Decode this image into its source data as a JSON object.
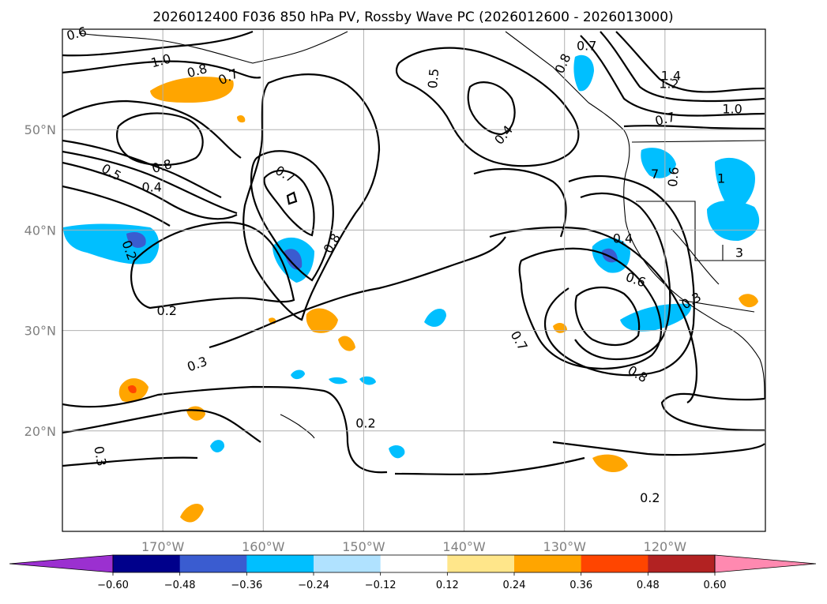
{
  "title": "2026012400 F036 850 hPa PV, Rossby Wave PC (2026012600 - 2026013000)",
  "map": {
    "lon_ticks": [
      {
        "lon": -170,
        "label": "170°W"
      },
      {
        "lon": -160,
        "label": "160°W"
      },
      {
        "lon": -150,
        "label": "150°W"
      },
      {
        "lon": -140,
        "label": "140°W"
      },
      {
        "lon": -130,
        "label": "130°W"
      },
      {
        "lon": -120,
        "label": "120°W"
      }
    ],
    "lat_ticks": [
      {
        "lat": 50,
        "label": "50°N"
      },
      {
        "lat": 40,
        "label": "40°N"
      },
      {
        "lat": 30,
        "label": "30°N"
      },
      {
        "lat": 20,
        "label": "20°N"
      }
    ],
    "extent": {
      "lon_min": -180,
      "lon_max": -110,
      "lat_min": 10,
      "lat_max": 60
    }
  },
  "contour_labels": [
    {
      "text": "0.6",
      "lon": -178.6,
      "lat": 59.6,
      "rot": -15
    },
    {
      "text": "1.0",
      "lon": -170.2,
      "lat": 56.9,
      "rot": -15
    },
    {
      "text": "0.8",
      "lon": -166.6,
      "lat": 55.9,
      "rot": -15
    },
    {
      "text": "0.7",
      "lon": -163.5,
      "lat": 55.3,
      "rot": -25
    },
    {
      "text": "0.5",
      "lon": -143.1,
      "lat": 55.1,
      "rot": -85
    },
    {
      "text": "0.8",
      "lon": -130.2,
      "lat": 56.6,
      "rot": -65
    },
    {
      "text": "0.7",
      "lon": -127.8,
      "lat": 58.4,
      "rot": 0
    },
    {
      "text": "1.4",
      "lon": -119.4,
      "lat": 55.4,
      "rot": 0
    },
    {
      "text": "1.2",
      "lon": -119.6,
      "lat": 54.6,
      "rot": 0
    },
    {
      "text": "1.0",
      "lon": -113.3,
      "lat": 52.1,
      "rot": 0
    },
    {
      "text": "0.7",
      "lon": -120.0,
      "lat": 51.1,
      "rot": -15
    },
    {
      "text": "0.4",
      "lon": -136.1,
      "lat": 49.5,
      "rot": -50
    },
    {
      "text": "0.8",
      "lon": -170.1,
      "lat": 46.4,
      "rot": -15
    },
    {
      "text": "0.5",
      "lon": -175.1,
      "lat": 45.8,
      "rot": 30
    },
    {
      "text": "0.4",
      "lon": -171.1,
      "lat": 44.3,
      "rot": 0
    },
    {
      "text": "0.7",
      "lon": -157.8,
      "lat": 45.6,
      "rot": 30
    },
    {
      "text": "0.8",
      "lon": -153.2,
      "lat": 38.7,
      "rot": -60
    },
    {
      "text": "0.2",
      "lon": -173.3,
      "lat": 38.0,
      "rot": 70
    },
    {
      "text": "0.2",
      "lon": -169.6,
      "lat": 32.0,
      "rot": 0
    },
    {
      "text": "0.3",
      "lon": -166.6,
      "lat": 26.7,
      "rot": -20
    },
    {
      "text": "0.2",
      "lon": -149.8,
      "lat": 20.8,
      "rot": 0
    },
    {
      "text": "0.3",
      "lon": -176.2,
      "lat": 17.5,
      "rot": 80
    },
    {
      "text": "0.4",
      "lon": -124.2,
      "lat": 39.2,
      "rot": 0
    },
    {
      "text": "0.6",
      "lon": -122.9,
      "lat": 35.1,
      "rot": 20
    },
    {
      "text": "0.7",
      "lon": -134.5,
      "lat": 29.0,
      "rot": 60
    },
    {
      "text": "0.8",
      "lon": -122.7,
      "lat": 25.7,
      "rot": 30
    },
    {
      "text": "0.3",
      "lon": -117.4,
      "lat": 33.0,
      "rot": -30
    },
    {
      "text": "0.2",
      "lon": -121.5,
      "lat": 13.4,
      "rot": 0
    },
    {
      "text": "0.6",
      "lon": -119.2,
      "lat": 45.3,
      "rot": -85
    },
    {
      "text": "7",
      "lon": -121.0,
      "lat": 45.6,
      "rot": 0
    },
    {
      "text": "1",
      "lon": -114.4,
      "lat": 45.2,
      "rot": 0
    },
    {
      "text": "3",
      "lon": -112.6,
      "lat": 37.8,
      "rot": 0
    }
  ],
  "colorbar": {
    "levels": [
      -0.6,
      -0.48,
      -0.36,
      -0.24,
      -0.12,
      0.12,
      0.24,
      0.36,
      0.48,
      0.6
    ],
    "tick_labels": [
      "−0.60",
      "−0.48",
      "−0.36",
      "−0.24",
      "−0.12",
      "0.12",
      "0.24",
      "0.36",
      "0.48",
      "0.60"
    ],
    "colors": [
      "#9b30d0",
      "#00008b",
      "#3a5cd0",
      "#00bfff",
      "#b0e2ff",
      "#ffffff",
      "#ffe68a",
      "#ffa500",
      "#ff4500",
      "#b22222",
      "#ff89b0"
    ]
  }
}
